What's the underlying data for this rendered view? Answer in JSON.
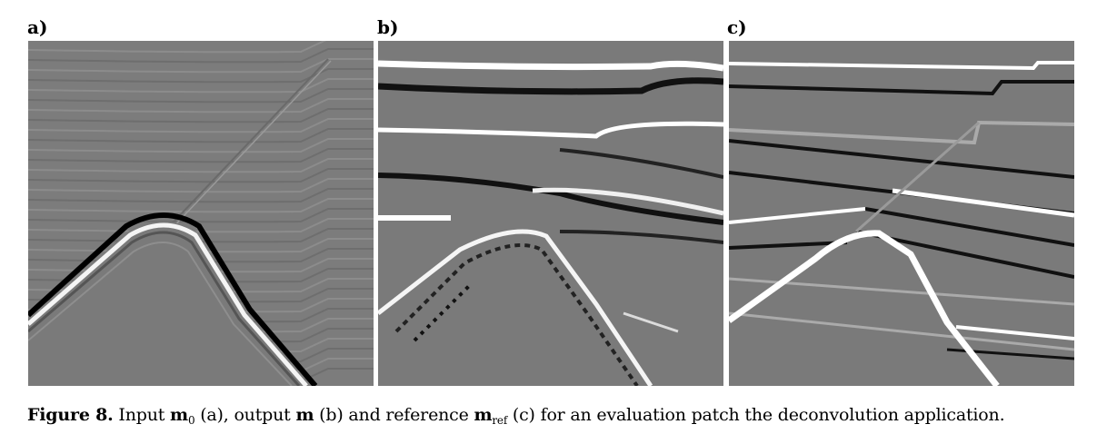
{
  "panels": [
    {
      "label": "a)"
    },
    {
      "label": "b)"
    },
    {
      "label": "c)"
    }
  ],
  "caption": {
    "prefix": "Figure 8.",
    "t1": " Input ",
    "m0": "m",
    "m0_sub": "0",
    "t2": " (a), output ",
    "m": "m",
    "t3": " (b) and reference ",
    "mref": "m",
    "mref_sub": "ref",
    "t4": " (c) for an evaluation patch the deconvolution application."
  },
  "colors": {
    "background_gray": "#7a7a7a",
    "white": "#ffffff",
    "black": "#111111"
  }
}
